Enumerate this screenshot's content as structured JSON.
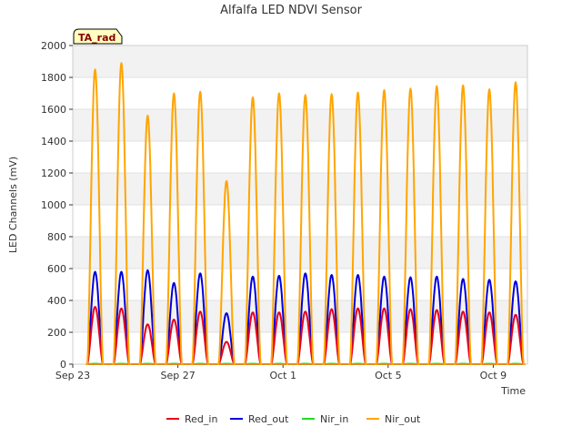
{
  "chart_data": {
    "type": "line",
    "title": "Alfalfa LED NDVI Sensor",
    "xlabel": "Time",
    "ylabel": "LED Channels (mV)",
    "ylim": [
      0,
      2000
    ],
    "yticks": [
      0,
      200,
      400,
      600,
      800,
      1000,
      1200,
      1400,
      1600,
      1800,
      2000
    ],
    "xlim": [
      0,
      17.3
    ],
    "xticks": [
      {
        "day": 0,
        "label": "Sep 23"
      },
      {
        "day": 4,
        "label": "Sep 27"
      },
      {
        "day": 8,
        "label": "Oct 1"
      },
      {
        "day": 12,
        "label": "Oct 5"
      },
      {
        "day": 16,
        "label": "Oct 9"
      }
    ],
    "badge": "TA_rad",
    "grid": true,
    "legend_position": "bottom",
    "day_centers": [
      0.85,
      1.85,
      2.85,
      3.85,
      4.85,
      5.85,
      6.85,
      7.85,
      8.85,
      9.85,
      10.85,
      11.85,
      12.85,
      13.85,
      14.85,
      15.85,
      16.85
    ],
    "series": [
      {
        "name": "Red_in",
        "color": "#e8001c",
        "daily_peaks": [
          360,
          350,
          250,
          280,
          330,
          140,
          325,
          325,
          330,
          345,
          350,
          350,
          345,
          340,
          330,
          325,
          310
        ]
      },
      {
        "name": "Red_out",
        "color": "#0000dd",
        "daily_peaks": [
          580,
          580,
          590,
          510,
          570,
          320,
          550,
          555,
          570,
          560,
          560,
          550,
          545,
          550,
          535,
          530,
          520
        ]
      },
      {
        "name": "Nir_in",
        "color": "#22dd22",
        "daily_peaks": [
          3,
          3,
          3,
          3,
          3,
          3,
          3,
          3,
          3,
          3,
          3,
          3,
          3,
          3,
          3,
          3,
          3
        ]
      },
      {
        "name": "Nir_out",
        "color": "#ffa500",
        "daily_peaks": [
          1850,
          1890,
          1560,
          1700,
          1710,
          1150,
          1675,
          1700,
          1690,
          1695,
          1705,
          1720,
          1730,
          1745,
          1750,
          1725,
          1770
        ]
      }
    ]
  }
}
